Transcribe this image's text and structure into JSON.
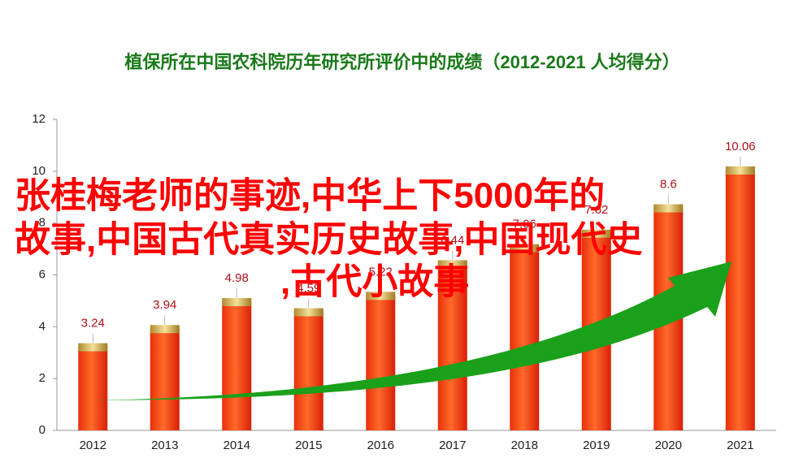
{
  "chart_data": {
    "type": "bar",
    "title": "植保所在中国农科院历年研究所评价中的成绩（2012-2021  人均得分）",
    "categories": [
      "2012",
      "2013",
      "2014",
      "2015",
      "2016",
      "2017",
      "2018",
      "2019",
      "2020",
      "2021"
    ],
    "values": [
      3.24,
      3.94,
      4.98,
      4.59,
      5.22,
      6.44,
      7.06,
      7.62,
      8.6,
      10.06
    ],
    "color": "#f03a10",
    "ylim": [
      0,
      12
    ],
    "yticks": [
      0,
      2,
      4,
      6,
      8,
      10,
      12
    ],
    "grid": false
  },
  "overlay_text": [
    "张桂梅老师的事迹,中华上下5000年的",
    "故事,中国古代真实历史故事,中国现代史",
    ",古代小故事"
  ]
}
